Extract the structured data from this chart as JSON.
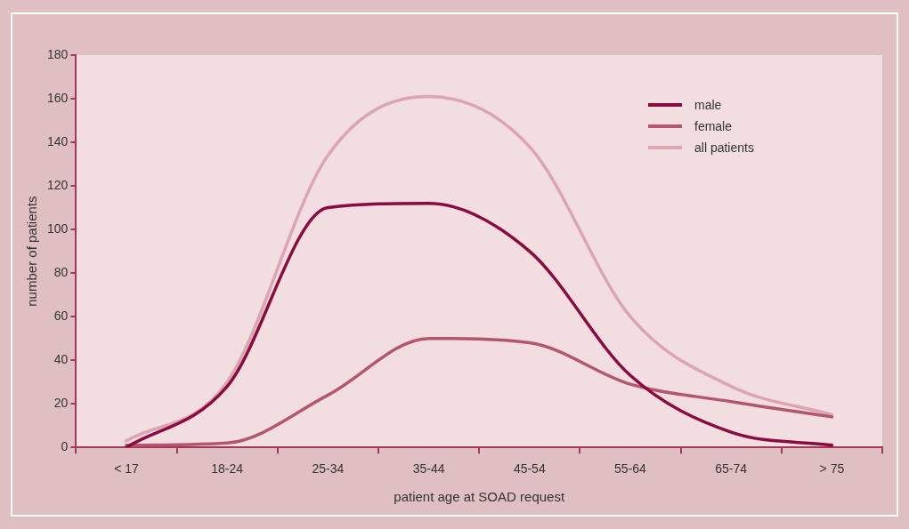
{
  "chart_data": {
    "type": "line",
    "xlabel": "patient age at SOAD request",
    "ylabel": "number of patients",
    "categories": [
      "< 17",
      "18-24",
      "25-34",
      "35-44",
      "45-54",
      "55-64",
      "65-74",
      "> 75"
    ],
    "series": [
      {
        "name": "male",
        "color": "#8b0a3f",
        "values": [
          0,
          28,
          110,
          112,
          90,
          33,
          7,
          1
        ]
      },
      {
        "name": "female",
        "color": "#b5566f",
        "values": [
          1,
          2,
          24,
          50,
          48,
          29,
          21,
          14
        ]
      },
      {
        "name": "all patients",
        "color": "#dca5b2",
        "values": [
          3,
          30,
          134,
          161,
          138,
          60,
          28,
          15
        ]
      }
    ],
    "ylim": [
      0,
      180
    ],
    "yticks": [
      0,
      20,
      40,
      60,
      80,
      100,
      120,
      140,
      160,
      180
    ],
    "grid": false,
    "legend": "top right",
    "marker": "none",
    "line_style": "solid"
  }
}
